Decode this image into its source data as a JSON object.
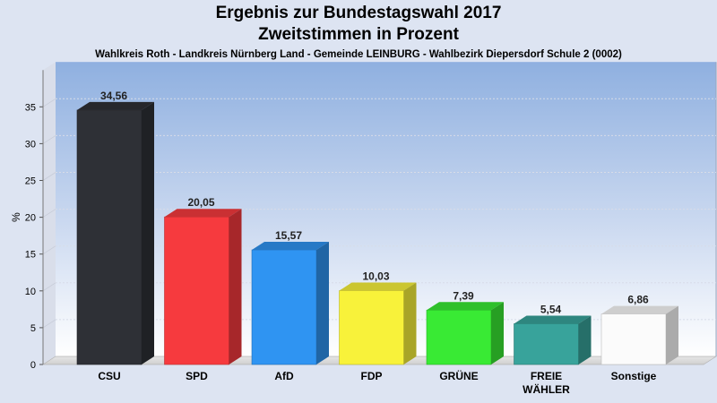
{
  "chart_data": {
    "type": "bar",
    "title": "Ergebnis zur Bundestagswahl 2017",
    "subtitle": "Zweitstimmen in Prozent",
    "caption": "Wahlkreis Roth - Landkreis Nürnberg Land - Gemeinde LEINBURG - Wahlbezirk Diepersdorf Schule 2 (0002)",
    "ylabel": "%",
    "ylim": [
      0,
      40
    ],
    "yticks": [
      0,
      5,
      10,
      15,
      20,
      25,
      30,
      35
    ],
    "grid": true,
    "categories": [
      {
        "label_lines": [
          "CSU"
        ]
      },
      {
        "label_lines": [
          "SPD"
        ]
      },
      {
        "label_lines": [
          "AfD"
        ]
      },
      {
        "label_lines": [
          "FDP"
        ]
      },
      {
        "label_lines": [
          "GRÜNE"
        ]
      },
      {
        "label_lines": [
          "FREIE",
          "WÄHLER"
        ]
      },
      {
        "label_lines": [
          "Sonstige"
        ]
      }
    ],
    "values": [
      34.56,
      20.05,
      15.57,
      10.03,
      7.39,
      5.54,
      6.86
    ],
    "value_labels": [
      "34,56",
      "20,05",
      "15,57",
      "10,03",
      "7,39",
      "5,54",
      "6,86"
    ],
    "colors": [
      "#2e3036",
      "#f63a3e",
      "#2f94f2",
      "#f8f23a",
      "#39ea34",
      "#38a39b",
      "#fbfbfb"
    ]
  }
}
